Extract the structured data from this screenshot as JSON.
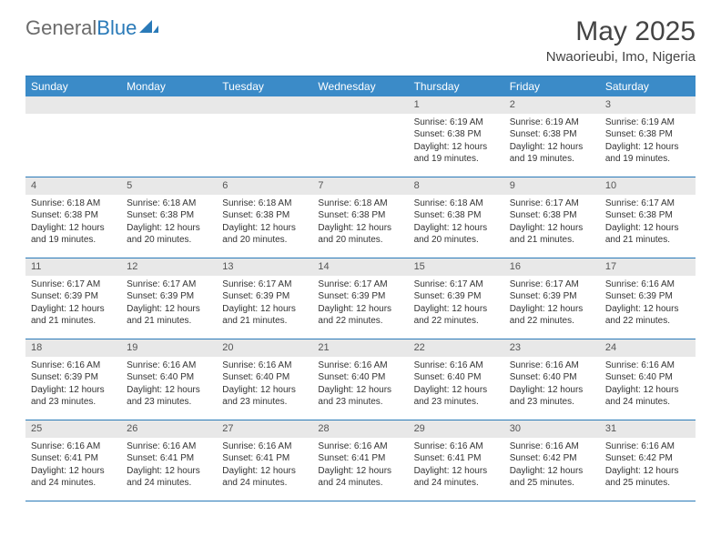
{
  "brand": {
    "part1": "General",
    "part2": "Blue"
  },
  "title": "May 2025",
  "location": "Nwaorieubi, Imo, Nigeria",
  "colors": {
    "header_bar": "#3b8bc8",
    "border": "#2a7ab8",
    "daynum_bg": "#e8e8e8",
    "text": "#333333"
  },
  "dow": [
    "Sunday",
    "Monday",
    "Tuesday",
    "Wednesday",
    "Thursday",
    "Friday",
    "Saturday"
  ],
  "weeks": [
    [
      {
        "n": "",
        "sr": "",
        "ss": "",
        "dl": ""
      },
      {
        "n": "",
        "sr": "",
        "ss": "",
        "dl": ""
      },
      {
        "n": "",
        "sr": "",
        "ss": "",
        "dl": ""
      },
      {
        "n": "",
        "sr": "",
        "ss": "",
        "dl": ""
      },
      {
        "n": "1",
        "sr": "Sunrise: 6:19 AM",
        "ss": "Sunset: 6:38 PM",
        "dl": "Daylight: 12 hours and 19 minutes."
      },
      {
        "n": "2",
        "sr": "Sunrise: 6:19 AM",
        "ss": "Sunset: 6:38 PM",
        "dl": "Daylight: 12 hours and 19 minutes."
      },
      {
        "n": "3",
        "sr": "Sunrise: 6:19 AM",
        "ss": "Sunset: 6:38 PM",
        "dl": "Daylight: 12 hours and 19 minutes."
      }
    ],
    [
      {
        "n": "4",
        "sr": "Sunrise: 6:18 AM",
        "ss": "Sunset: 6:38 PM",
        "dl": "Daylight: 12 hours and 19 minutes."
      },
      {
        "n": "5",
        "sr": "Sunrise: 6:18 AM",
        "ss": "Sunset: 6:38 PM",
        "dl": "Daylight: 12 hours and 20 minutes."
      },
      {
        "n": "6",
        "sr": "Sunrise: 6:18 AM",
        "ss": "Sunset: 6:38 PM",
        "dl": "Daylight: 12 hours and 20 minutes."
      },
      {
        "n": "7",
        "sr": "Sunrise: 6:18 AM",
        "ss": "Sunset: 6:38 PM",
        "dl": "Daylight: 12 hours and 20 minutes."
      },
      {
        "n": "8",
        "sr": "Sunrise: 6:18 AM",
        "ss": "Sunset: 6:38 PM",
        "dl": "Daylight: 12 hours and 20 minutes."
      },
      {
        "n": "9",
        "sr": "Sunrise: 6:17 AM",
        "ss": "Sunset: 6:38 PM",
        "dl": "Daylight: 12 hours and 21 minutes."
      },
      {
        "n": "10",
        "sr": "Sunrise: 6:17 AM",
        "ss": "Sunset: 6:38 PM",
        "dl": "Daylight: 12 hours and 21 minutes."
      }
    ],
    [
      {
        "n": "11",
        "sr": "Sunrise: 6:17 AM",
        "ss": "Sunset: 6:39 PM",
        "dl": "Daylight: 12 hours and 21 minutes."
      },
      {
        "n": "12",
        "sr": "Sunrise: 6:17 AM",
        "ss": "Sunset: 6:39 PM",
        "dl": "Daylight: 12 hours and 21 minutes."
      },
      {
        "n": "13",
        "sr": "Sunrise: 6:17 AM",
        "ss": "Sunset: 6:39 PM",
        "dl": "Daylight: 12 hours and 21 minutes."
      },
      {
        "n": "14",
        "sr": "Sunrise: 6:17 AM",
        "ss": "Sunset: 6:39 PM",
        "dl": "Daylight: 12 hours and 22 minutes."
      },
      {
        "n": "15",
        "sr": "Sunrise: 6:17 AM",
        "ss": "Sunset: 6:39 PM",
        "dl": "Daylight: 12 hours and 22 minutes."
      },
      {
        "n": "16",
        "sr": "Sunrise: 6:17 AM",
        "ss": "Sunset: 6:39 PM",
        "dl": "Daylight: 12 hours and 22 minutes."
      },
      {
        "n": "17",
        "sr": "Sunrise: 6:16 AM",
        "ss": "Sunset: 6:39 PM",
        "dl": "Daylight: 12 hours and 22 minutes."
      }
    ],
    [
      {
        "n": "18",
        "sr": "Sunrise: 6:16 AM",
        "ss": "Sunset: 6:39 PM",
        "dl": "Daylight: 12 hours and 23 minutes."
      },
      {
        "n": "19",
        "sr": "Sunrise: 6:16 AM",
        "ss": "Sunset: 6:40 PM",
        "dl": "Daylight: 12 hours and 23 minutes."
      },
      {
        "n": "20",
        "sr": "Sunrise: 6:16 AM",
        "ss": "Sunset: 6:40 PM",
        "dl": "Daylight: 12 hours and 23 minutes."
      },
      {
        "n": "21",
        "sr": "Sunrise: 6:16 AM",
        "ss": "Sunset: 6:40 PM",
        "dl": "Daylight: 12 hours and 23 minutes."
      },
      {
        "n": "22",
        "sr": "Sunrise: 6:16 AM",
        "ss": "Sunset: 6:40 PM",
        "dl": "Daylight: 12 hours and 23 minutes."
      },
      {
        "n": "23",
        "sr": "Sunrise: 6:16 AM",
        "ss": "Sunset: 6:40 PM",
        "dl": "Daylight: 12 hours and 23 minutes."
      },
      {
        "n": "24",
        "sr": "Sunrise: 6:16 AM",
        "ss": "Sunset: 6:40 PM",
        "dl": "Daylight: 12 hours and 24 minutes."
      }
    ],
    [
      {
        "n": "25",
        "sr": "Sunrise: 6:16 AM",
        "ss": "Sunset: 6:41 PM",
        "dl": "Daylight: 12 hours and 24 minutes."
      },
      {
        "n": "26",
        "sr": "Sunrise: 6:16 AM",
        "ss": "Sunset: 6:41 PM",
        "dl": "Daylight: 12 hours and 24 minutes."
      },
      {
        "n": "27",
        "sr": "Sunrise: 6:16 AM",
        "ss": "Sunset: 6:41 PM",
        "dl": "Daylight: 12 hours and 24 minutes."
      },
      {
        "n": "28",
        "sr": "Sunrise: 6:16 AM",
        "ss": "Sunset: 6:41 PM",
        "dl": "Daylight: 12 hours and 24 minutes."
      },
      {
        "n": "29",
        "sr": "Sunrise: 6:16 AM",
        "ss": "Sunset: 6:41 PM",
        "dl": "Daylight: 12 hours and 24 minutes."
      },
      {
        "n": "30",
        "sr": "Sunrise: 6:16 AM",
        "ss": "Sunset: 6:42 PM",
        "dl": "Daylight: 12 hours and 25 minutes."
      },
      {
        "n": "31",
        "sr": "Sunrise: 6:16 AM",
        "ss": "Sunset: 6:42 PM",
        "dl": "Daylight: 12 hours and 25 minutes."
      }
    ]
  ]
}
